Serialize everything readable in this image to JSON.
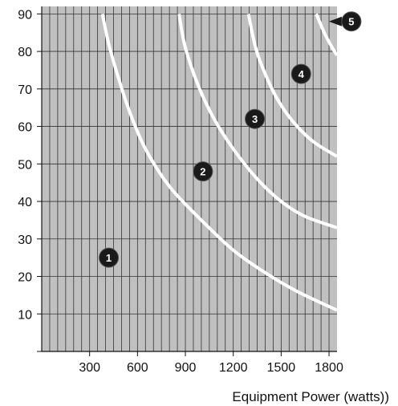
{
  "chart_data": {
    "type": "line",
    "xlabel": "Equipment Power (watts))",
    "ylabel": "",
    "title": "",
    "xlim": [
      0,
      1850
    ],
    "ylim": [
      0,
      92
    ],
    "x_ticks": [
      300,
      600,
      900,
      1200,
      1500,
      1800
    ],
    "y_ticks": [
      10,
      20,
      30,
      40,
      50,
      60,
      70,
      80,
      90
    ],
    "x_tick_labels": [
      "300",
      "600",
      "900",
      "1200",
      "1500",
      "1800"
    ],
    "y_tick_labels": [
      "10",
      "20",
      "30",
      "40",
      "50",
      "60",
      "70",
      "80",
      "90"
    ],
    "grid": true,
    "plot_background": "#c0c0c0",
    "grid_color": "#333333",
    "curve_color": "#ffffff",
    "series": [
      {
        "x": [
          380,
          420,
          480,
          550,
          650,
          800,
          1000,
          1200,
          1400,
          1600,
          1850
        ],
        "y": [
          90,
          82,
          73,
          64,
          54,
          44,
          35,
          27,
          21,
          16,
          11
        ]
      },
      {
        "x": [
          860,
          900,
          980,
          1080,
          1200,
          1350,
          1500,
          1650,
          1850
        ],
        "y": [
          90,
          81,
          71,
          62,
          54,
          46,
          40,
          36,
          33
        ]
      },
      {
        "x": [
          1295,
          1340,
          1400,
          1480,
          1580,
          1700,
          1850
        ],
        "y": [
          90,
          81,
          74,
          67,
          61,
          56,
          52
        ]
      },
      {
        "x": [
          1720,
          1770,
          1820,
          1850
        ],
        "y": [
          90,
          85,
          81,
          79
        ]
      }
    ],
    "markers": [
      {
        "label": "1",
        "x": 420,
        "y": 25
      },
      {
        "label": "2",
        "x": 1010,
        "y": 48
      },
      {
        "label": "3",
        "x": 1335,
        "y": 62
      },
      {
        "label": "4",
        "x": 1625,
        "y": 74
      },
      {
        "label": "5",
        "x": 1940,
        "y": 88
      }
    ]
  }
}
